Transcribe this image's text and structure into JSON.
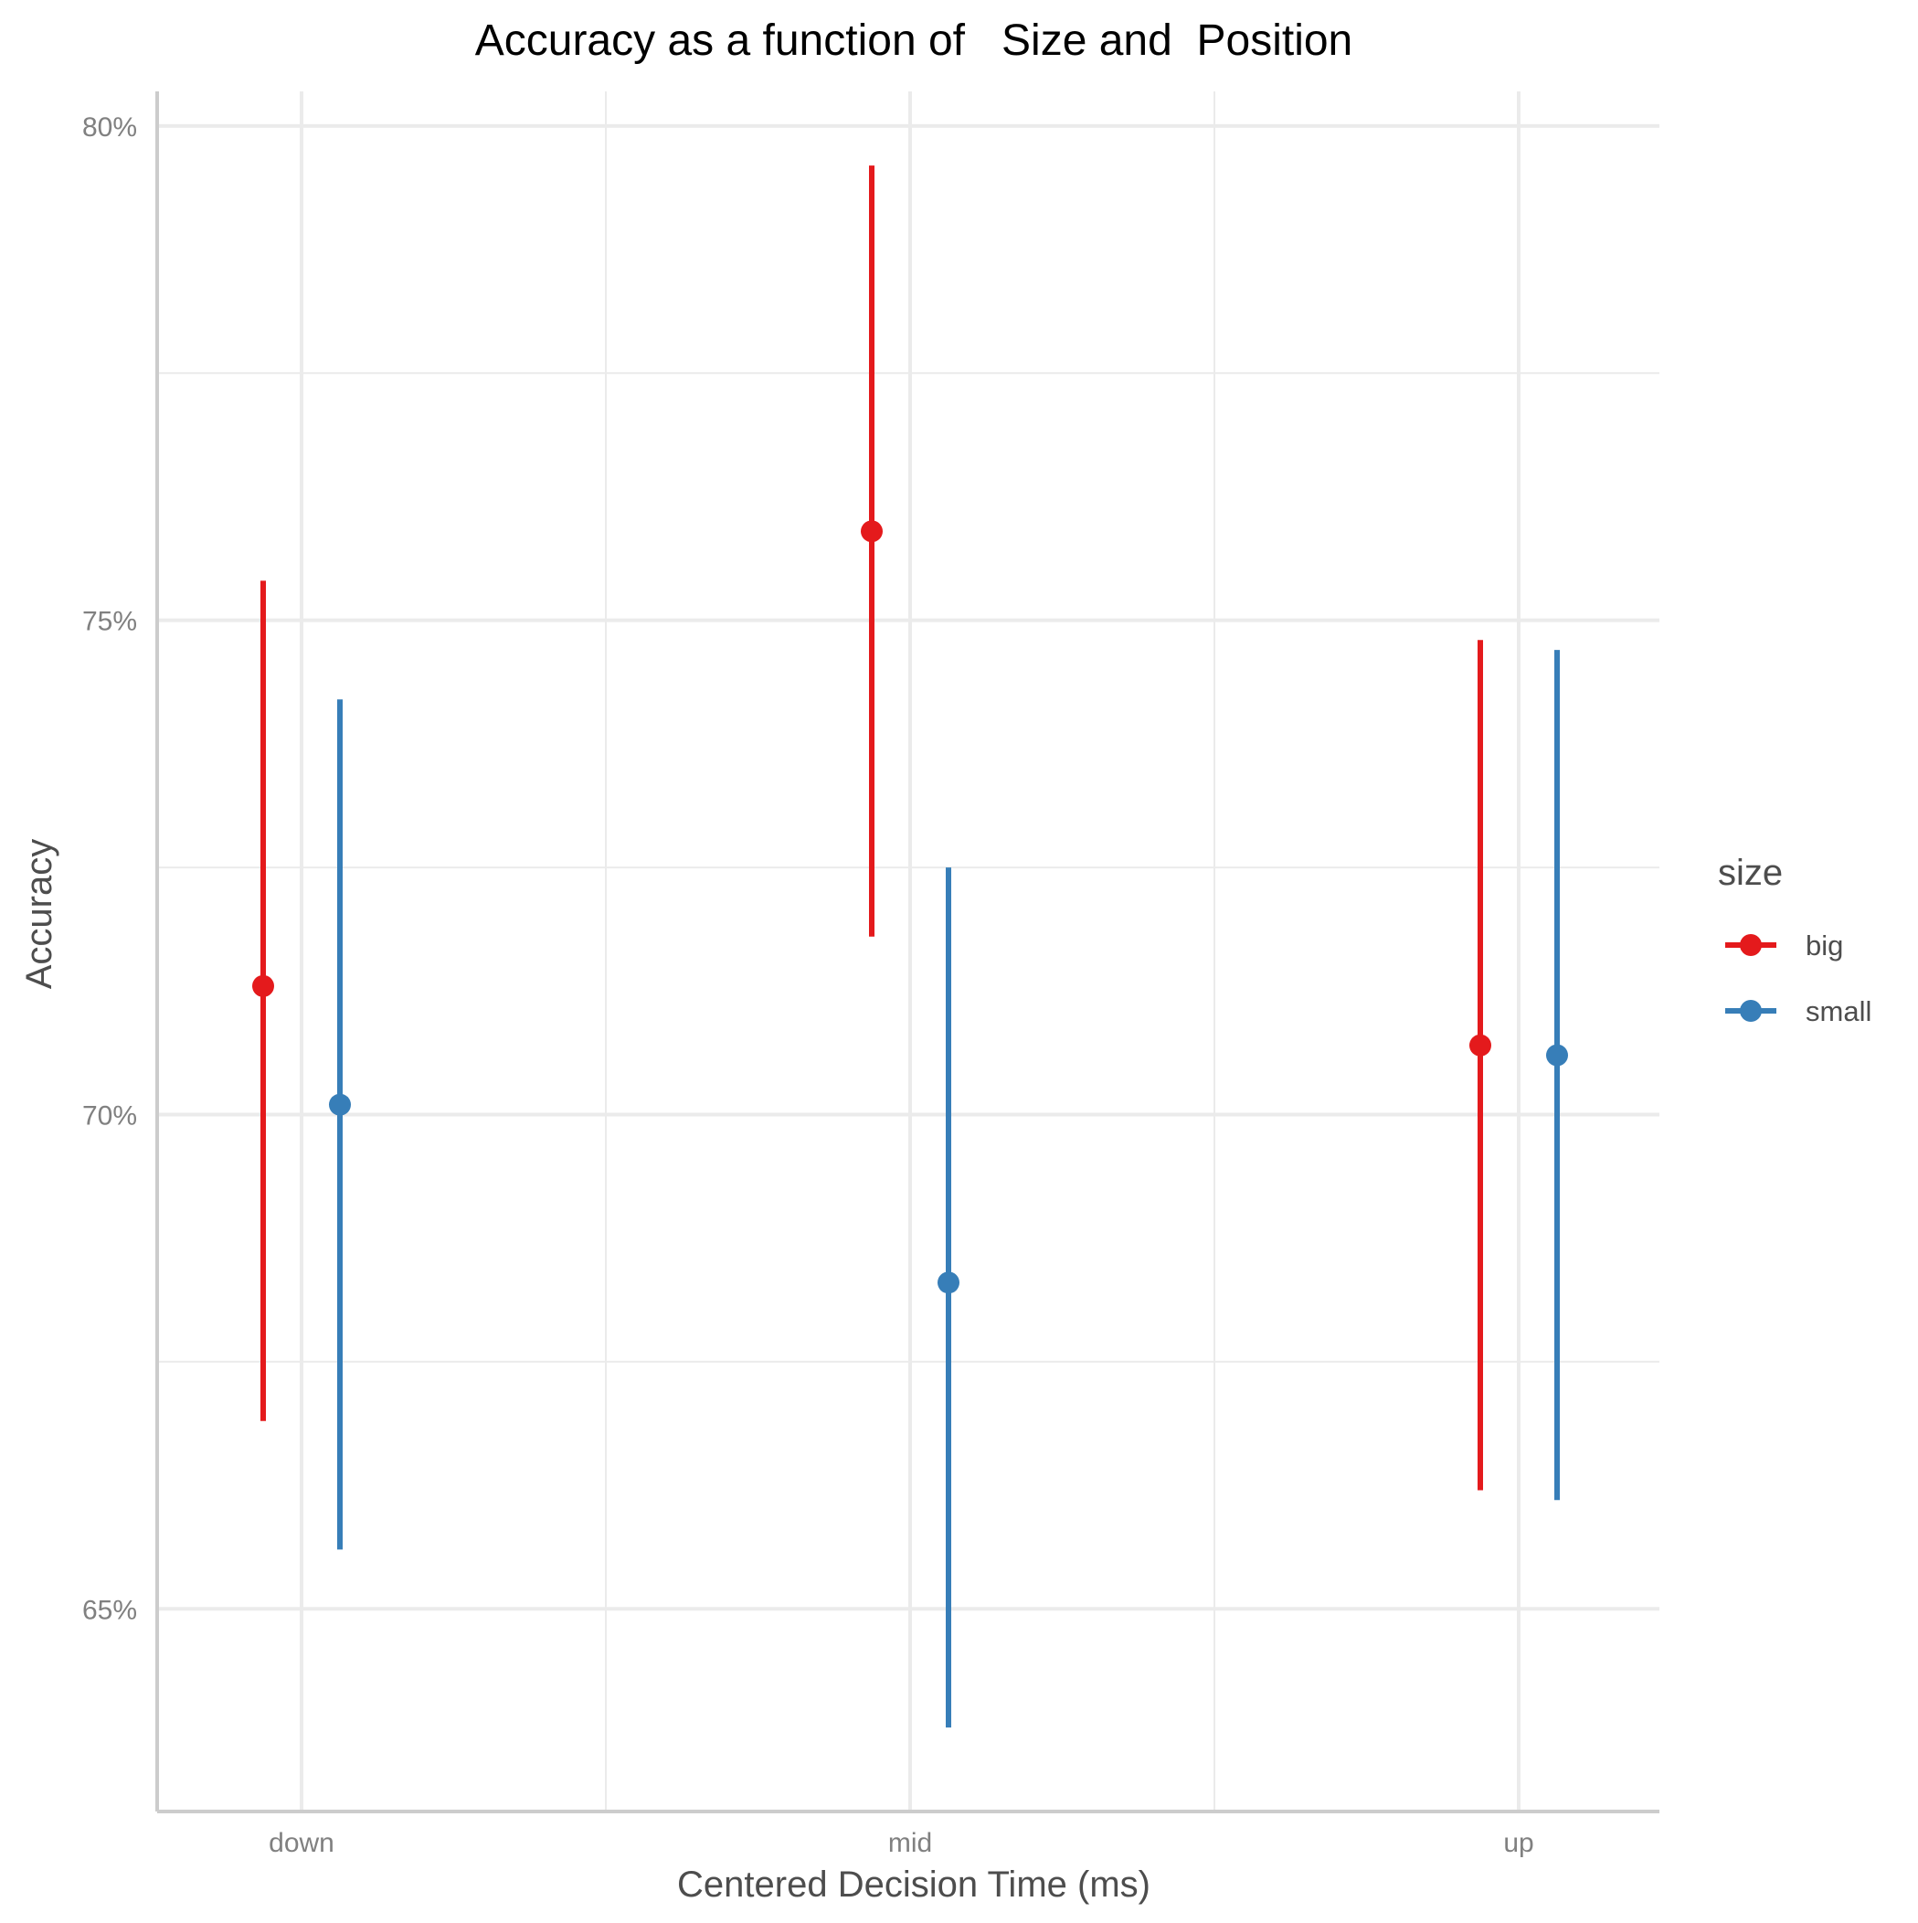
{
  "chart_data": {
    "type": "scatter",
    "title": "Accuracy as a function of   Size and  Position",
    "xlabel": "Centered Decision Time (ms)",
    "ylabel": "Accuracy",
    "categories": [
      "down",
      "mid",
      "up"
    ],
    "y_ticks": [
      65,
      70,
      75,
      80
    ],
    "y_tick_labels": [
      "65%",
      "70%",
      "75%",
      "80%"
    ],
    "ylim": [
      62.95,
      80.35
    ],
    "grid": true,
    "legend": {
      "title": "size",
      "placement": "right"
    },
    "series": [
      {
        "name": "big",
        "color": "#e41a1c",
        "values": [
          71.3,
          75.9,
          70.7
        ],
        "lower": [
          66.9,
          71.8,
          66.2
        ],
        "upper": [
          75.4,
          79.6,
          74.8
        ]
      },
      {
        "name": "small",
        "color": "#377eb8",
        "values": [
          70.1,
          68.3,
          70.6
        ],
        "lower": [
          65.6,
          63.8,
          66.1
        ],
        "upper": [
          74.2,
          72.5,
          74.7
        ]
      }
    ]
  }
}
